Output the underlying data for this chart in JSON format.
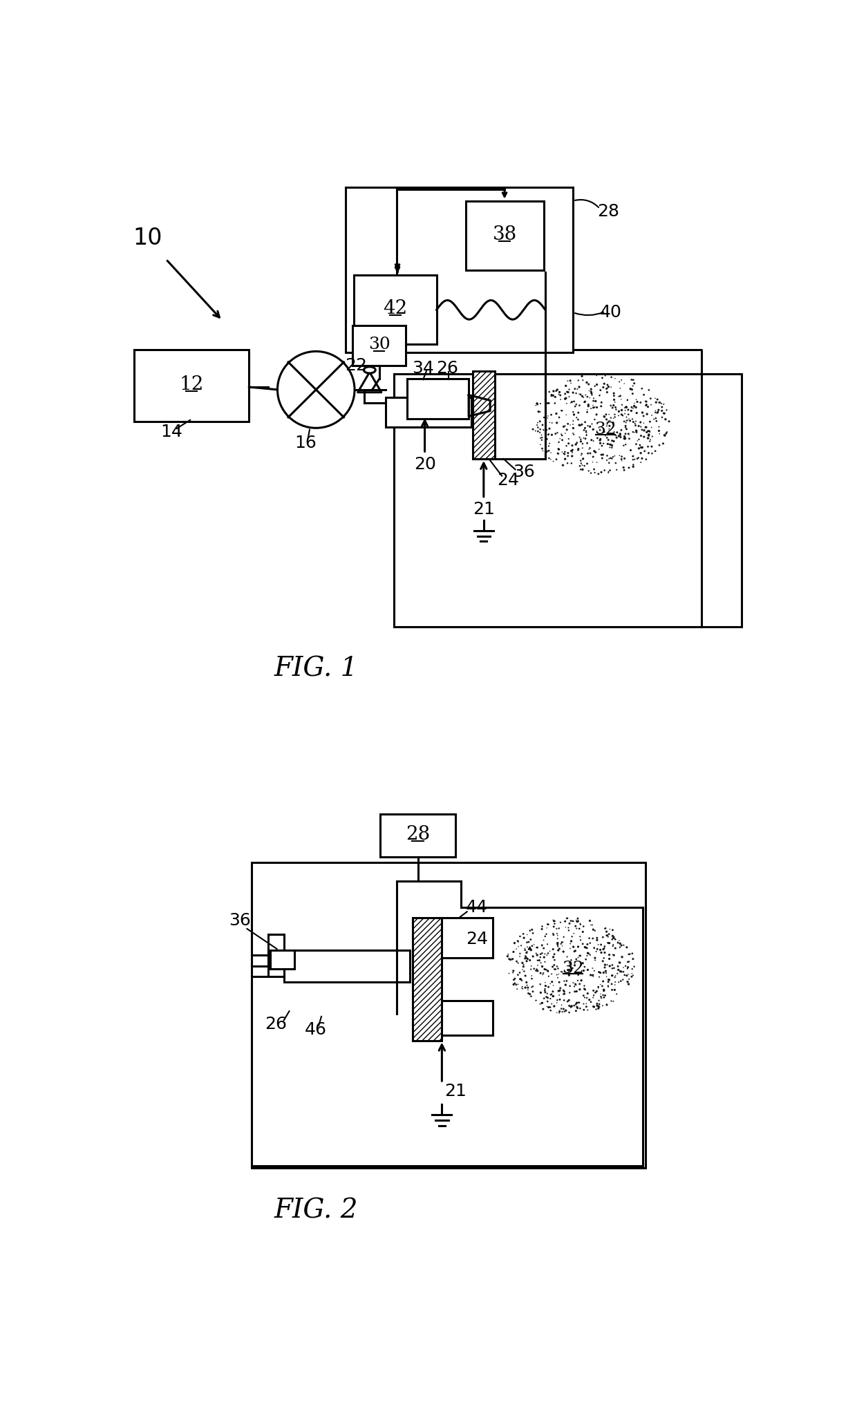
{
  "bg_color": "#ffffff",
  "line_color": "#000000",
  "fig1_title": "FIG. 1",
  "fig2_title": "FIG. 2",
  "label_10": "10",
  "label_12": "12",
  "label_14": "14",
  "label_16": "16",
  "label_20": "20",
  "label_21": "21",
  "label_22": "22",
  "label_24": "24",
  "label_26": "26",
  "label_28": "28",
  "label_30": "30",
  "label_32": "32",
  "label_34": "34",
  "label_36": "36",
  "label_38": "38",
  "label_40": "40",
  "label_42": "42",
  "label_44": "44",
  "label_46": "46"
}
